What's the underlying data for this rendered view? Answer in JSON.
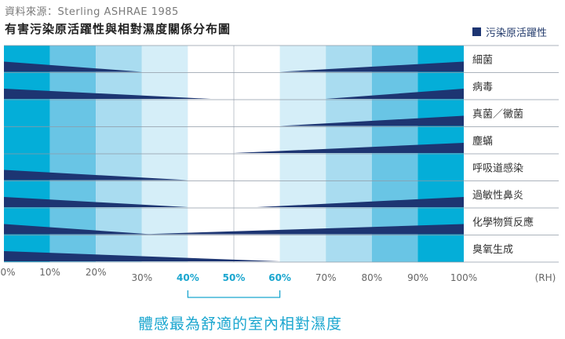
{
  "source": "資料來源：Sterling ASHRAE 1985",
  "title": "有害污染原活躍性與相對濕度關係分布圖",
  "legend": {
    "label": "污染原活躍性",
    "color": "#1d3572"
  },
  "comfort_zone": {
    "range": [
      40,
      60
    ],
    "label": "體感最為舒適的室內相對濕度"
  },
  "chart_data": {
    "type": "area",
    "x_unit": "(RH)",
    "x_ticks": [
      {
        "value": 0,
        "label": "0%"
      },
      {
        "value": 10,
        "label": "10%"
      },
      {
        "value": 20,
        "label": "20%"
      },
      {
        "value": 30,
        "label": "30%"
      },
      {
        "value": 40,
        "label": "40%"
      },
      {
        "value": 50,
        "label": "50%"
      },
      {
        "value": 60,
        "label": "60%"
      },
      {
        "value": 70,
        "label": "70%"
      },
      {
        "value": 80,
        "label": "80%"
      },
      {
        "value": 90,
        "label": "90%"
      },
      {
        "value": 100,
        "label": "100%"
      }
    ],
    "highlight_ticks": [
      40,
      50,
      60
    ],
    "xlim": [
      0,
      100
    ],
    "band_colors": [
      "#04aed8",
      "#69c5e5",
      "#a9dcf0",
      "#d5eef8",
      "#ffffff",
      "#ffffff",
      "#d5eef8",
      "#a9dcf0",
      "#69c5e5",
      "#04aed8"
    ],
    "series": [
      {
        "name": "細菌",
        "low": [
          0,
          30
        ],
        "high": [
          60,
          100
        ]
      },
      {
        "name": "病毒",
        "low": [
          0,
          45
        ],
        "high": [
          70,
          100
        ]
      },
      {
        "name": "真菌／黴菌",
        "low": [],
        "high": [
          60,
          100
        ]
      },
      {
        "name": "塵蟎",
        "low": [],
        "high": [
          50,
          100
        ]
      },
      {
        "name": "呼吸道感染",
        "low": [
          0,
          40
        ],
        "high": [],
        "low_end_taper": true
      },
      {
        "name": "過敏性鼻炎",
        "low": [
          0,
          40
        ],
        "high": [
          55,
          100
        ]
      },
      {
        "name": "化學物質反應",
        "low": [
          0,
          32
        ],
        "high": [
          30,
          100
        ]
      },
      {
        "name": "臭氧生成",
        "low": [
          0,
          60
        ],
        "high": []
      }
    ]
  }
}
